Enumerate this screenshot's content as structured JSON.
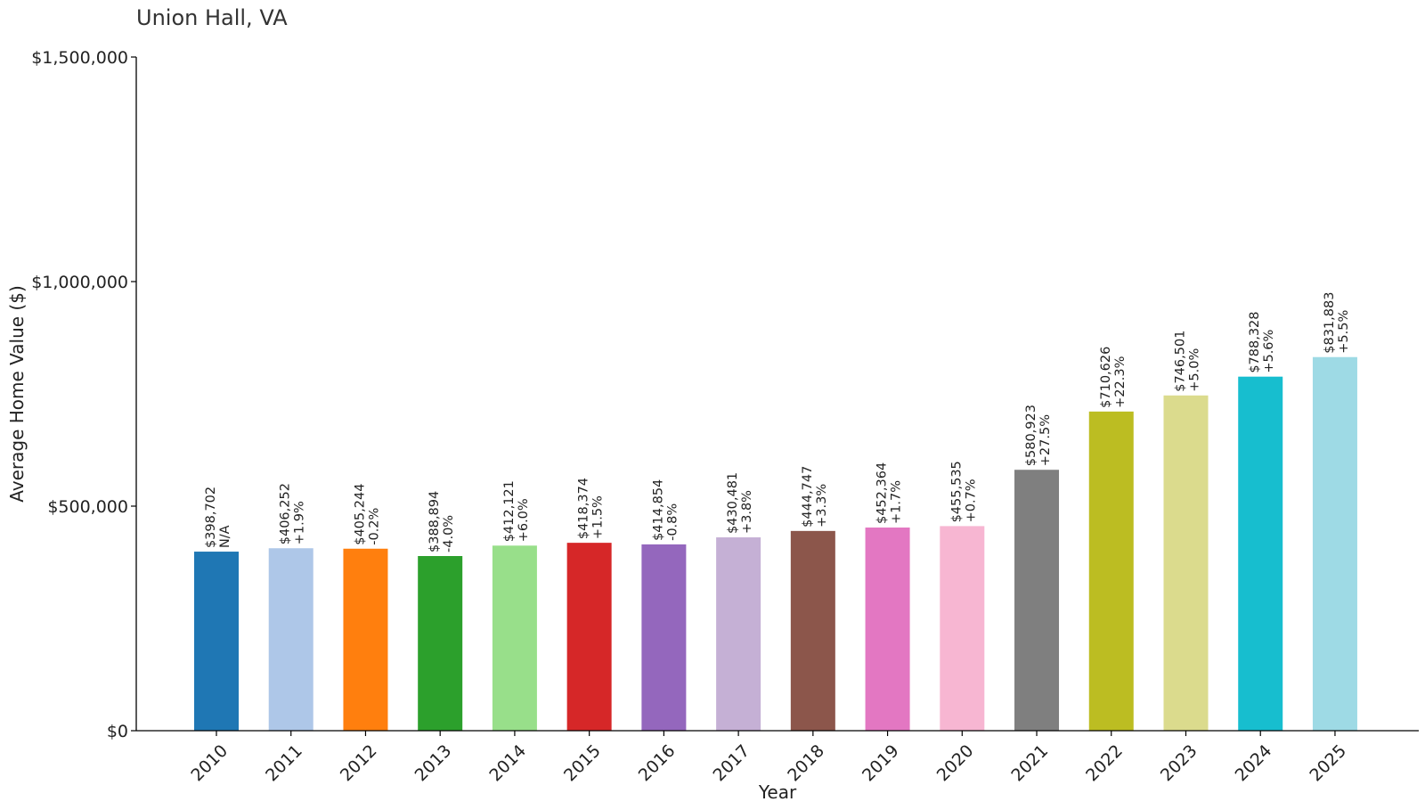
{
  "chart_data": {
    "type": "bar",
    "title": "Union Hall, VA",
    "xlabel": "Year",
    "ylabel": "Average Home Value ($)",
    "ylim": [
      0,
      1500000
    ],
    "yticks": [
      {
        "value": 0,
        "label": "$0"
      },
      {
        "value": 500000,
        "label": "$500,000"
      },
      {
        "value": 1000000,
        "label": "$1,000,000"
      },
      {
        "value": 1500000,
        "label": "$1,500,000"
      }
    ],
    "grid": false,
    "legend": "none",
    "categories": [
      "2010",
      "2011",
      "2012",
      "2013",
      "2014",
      "2015",
      "2016",
      "2017",
      "2018",
      "2019",
      "2020",
      "2021",
      "2022",
      "2023",
      "2024",
      "2025"
    ],
    "values": [
      398702,
      406252,
      405244,
      388894,
      412121,
      418374,
      414854,
      430481,
      444747,
      452364,
      455535,
      580923,
      710626,
      746501,
      788328,
      831883
    ],
    "value_labels": [
      "$398,702",
      "$406,252",
      "$405,244",
      "$388,894",
      "$412,121",
      "$418,374",
      "$414,854",
      "$430,481",
      "$444,747",
      "$452,364",
      "$455,535",
      "$580,923",
      "$710,626",
      "$746,501",
      "$788,328",
      "$831,883"
    ],
    "change_labels": [
      "N/A",
      "+1.9%",
      "-0.2%",
      "-4.0%",
      "+6.0%",
      "+1.5%",
      "-0.8%",
      "+3.8%",
      "+3.3%",
      "+1.7%",
      "+0.7%",
      "+27.5%",
      "+22.3%",
      "+5.0%",
      "+5.6%",
      "+5.5%"
    ],
    "colors": [
      "#1f77b4",
      "#aec7e8",
      "#ff7f0e",
      "#2ca02c",
      "#98df8a",
      "#d62728",
      "#9467bd",
      "#c5b0d5",
      "#8c564b",
      "#e377c2",
      "#f7b6d2",
      "#7f7f7f",
      "#bcbd22",
      "#dbdb8d",
      "#17becf",
      "#9edae5"
    ]
  }
}
